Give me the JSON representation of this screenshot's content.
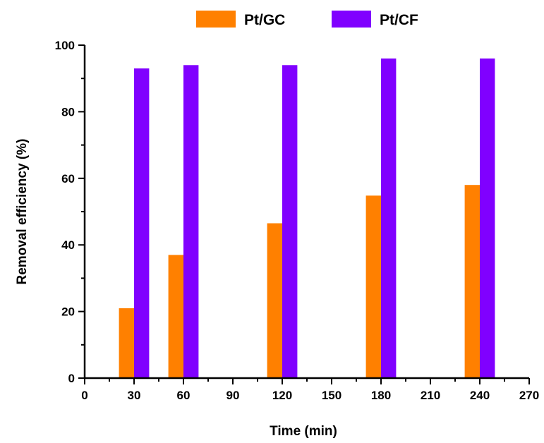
{
  "chart_data": {
    "type": "bar",
    "x": [
      30,
      60,
      120,
      180,
      240
    ],
    "series": [
      {
        "name": "Pt/GC",
        "color": "#ff8000",
        "values": [
          21,
          37,
          46.5,
          54.8,
          58
        ]
      },
      {
        "name": "Pt/CF",
        "color": "#8000ff",
        "values": [
          93,
          94,
          94,
          96,
          96
        ]
      }
    ],
    "xlabel": "Time (min)",
    "ylabel": "Removal efficiency (%)",
    "xlim": [
      0,
      270
    ],
    "ylim": [
      0,
      100
    ],
    "xticks": [
      "0",
      "30",
      "60",
      "90",
      "120",
      "150",
      "180",
      "210",
      "240",
      "270"
    ],
    "yticks": [
      "0",
      "20",
      "40",
      "60",
      "80",
      "100"
    ],
    "legend_position": "top",
    "grid": false
  }
}
